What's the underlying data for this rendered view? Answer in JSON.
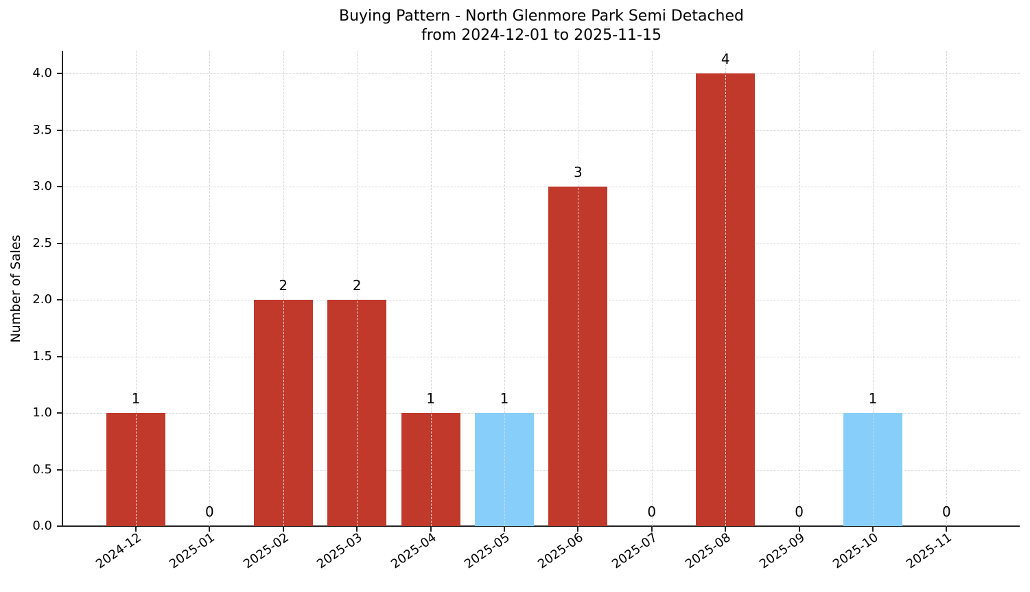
{
  "chart_data": {
    "type": "bar",
    "title": "Buying Pattern - North Glenmore Park Semi Detached",
    "subtitle": "from 2024-12-01 to 2025-11-15",
    "xlabel": "",
    "ylabel": "Number of Sales",
    "ylim": [
      0,
      4.2
    ],
    "yticks": [
      "0.0",
      "0.5",
      "1.0",
      "1.5",
      "2.0",
      "2.5",
      "3.0",
      "3.5",
      "4.0"
    ],
    "grid": true,
    "legend": null,
    "categories": [
      "2024-12",
      "2025-01",
      "2025-02",
      "2025-03",
      "2025-04",
      "2025-05",
      "2025-06",
      "2025-07",
      "2025-08",
      "2025-09",
      "2025-10",
      "2025-11"
    ],
    "values": [
      1,
      0,
      2,
      2,
      1,
      1,
      3,
      0,
      4,
      0,
      1,
      0
    ],
    "bar_colors": [
      "#c0392b",
      "#c0392b",
      "#c0392b",
      "#c0392b",
      "#c0392b",
      "#87cefa",
      "#c0392b",
      "#c0392b",
      "#c0392b",
      "#c0392b",
      "#87cefa",
      "#c0392b"
    ],
    "data_labels": [
      "1",
      "0",
      "2",
      "2",
      "1",
      "1",
      "3",
      "0",
      "4",
      "0",
      "1",
      "0"
    ]
  },
  "colors": {
    "primary": "#c0392b",
    "highlight": "#87cefa"
  }
}
